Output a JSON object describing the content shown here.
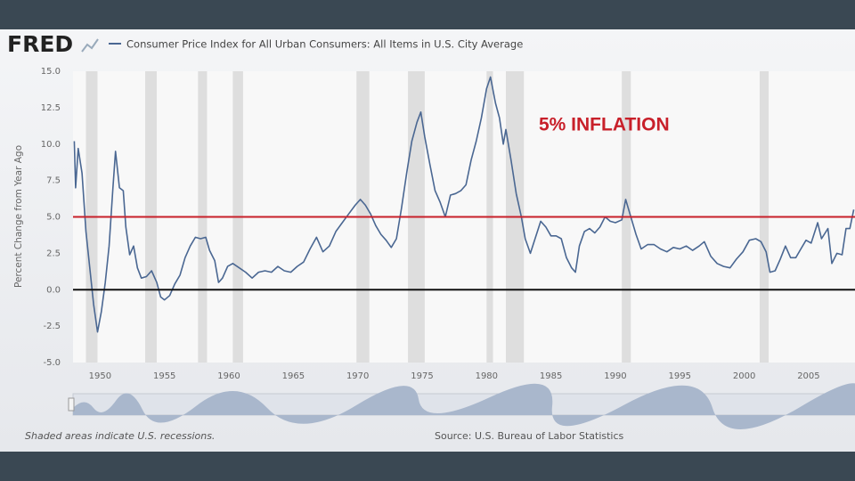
{
  "chart_data": {
    "type": "line",
    "logo": "FRED",
    "y_label": "Percent Change from Year Ago",
    "note": "Shaded areas indicate U.S. recessions.",
    "source": "Source: U.S. Bureau of Labor Statistics",
    "x": [
      1948.0,
      1948.1,
      1948.3,
      1948.6,
      1948.9,
      1949.2,
      1949.5,
      1949.8,
      1950.1,
      1950.4,
      1950.7,
      1951.0,
      1951.2,
      1951.5,
      1951.8,
      1952.0,
      1952.3,
      1952.6,
      1952.9,
      1953.2,
      1953.6,
      1954.0,
      1954.4,
      1954.7,
      1955.0,
      1955.4,
      1955.8,
      1956.2,
      1956.6,
      1957.0,
      1957.4,
      1957.8,
      1958.2,
      1958.5,
      1958.9,
      1959.2,
      1959.5,
      1959.9,
      1960.3,
      1960.8,
      1961.3,
      1961.8,
      1962.3,
      1962.8,
      1963.3,
      1963.8,
      1964.3,
      1964.8,
      1965.3,
      1965.8,
      1966.3,
      1966.8,
      1967.3,
      1967.8,
      1968.3,
      1968.8,
      1969.3,
      1969.8,
      1970.2,
      1970.6,
      1971.0,
      1971.4,
      1971.8,
      1972.2,
      1972.6,
      1973.0,
      1973.4,
      1973.8,
      1974.2,
      1974.6,
      1974.9,
      1975.2,
      1975.6,
      1976.0,
      1976.4,
      1976.8,
      1977.2,
      1977.6,
      1978.0,
      1978.4,
      1978.8,
      1979.2,
      1979.6,
      1980.0,
      1980.3,
      1980.7,
      1981.0,
      1981.3,
      1981.5,
      1981.9,
      1982.3,
      1982.7,
      1983.0,
      1983.4,
      1983.8,
      1984.2,
      1984.6,
      1985.0,
      1985.4,
      1985.8,
      1986.2,
      1986.6,
      1986.9,
      1987.2,
      1987.6,
      1988.0,
      1988.4,
      1988.8,
      1989.2,
      1989.6,
      1990.0,
      1990.5,
      1990.8,
      1991.2,
      1991.6,
      1992.0,
      1992.5,
      1993.0,
      1993.5,
      1994.0,
      1994.5,
      1995.0,
      1995.5,
      1996.0,
      1996.5,
      1996.9,
      1997.4,
      1997.9,
      1998.4,
      1998.9,
      1999.4,
      1999.9,
      2000.4,
      2000.9,
      2001.3,
      2001.7,
      2002.0,
      2002.4,
      2002.8,
      2003.2,
      2003.6,
      2004.0,
      2004.4,
      2004.8,
      2005.2,
      2005.7,
      2006.0,
      2006.5,
      2006.8,
      2007.2,
      2007.6,
      2007.9,
      2008.2,
      2008.5
    ],
    "series": [
      {
        "name": "Consumer Price Index for All Urban Consumers: All Items in U.S. City Average",
        "color": "#4a6792",
        "values": [
          10.2,
          7,
          9.7,
          8,
          4,
          1.5,
          -1,
          -2.9,
          -1.5,
          0.5,
          3,
          7,
          9.5,
          7,
          6.8,
          4.3,
          2.4,
          3,
          1.5,
          0.8,
          0.9,
          1.3,
          0.5,
          -0.5,
          -0.7,
          -0.4,
          0.4,
          1,
          2.2,
          3,
          3.6,
          3.5,
          3.6,
          2.7,
          2,
          0.5,
          0.8,
          1.6,
          1.8,
          1.5,
          1.2,
          0.8,
          1.2,
          1.3,
          1.2,
          1.6,
          1.3,
          1.2,
          1.6,
          1.9,
          2.8,
          3.6,
          2.6,
          3,
          4,
          4.6,
          5.2,
          5.8,
          6.2,
          5.8,
          5.2,
          4.4,
          3.8,
          3.4,
          2.9,
          3.5,
          5.6,
          8,
          10.2,
          11.5,
          12.2,
          10.5,
          8.6,
          6.8,
          6,
          5,
          6.5,
          6.6,
          6.8,
          7.2,
          8.9,
          10.2,
          11.8,
          13.8,
          14.6,
          12.8,
          11.8,
          10,
          11,
          8.9,
          6.6,
          5,
          3.5,
          2.5,
          3.6,
          4.7,
          4.3,
          3.7,
          3.7,
          3.5,
          2.2,
          1.5,
          1.2,
          3,
          4,
          4.2,
          3.9,
          4.3,
          5,
          4.7,
          4.6,
          4.8,
          6.2,
          5,
          3.8,
          2.8,
          3.1,
          3.1,
          2.8,
          2.6,
          2.9,
          2.8,
          3,
          2.7,
          3,
          3.3,
          2.3,
          1.8,
          1.6,
          1.5,
          2.1,
          2.6,
          3.4,
          3.5,
          3.3,
          2.6,
          1.2,
          1.3,
          2.1,
          3,
          2.2,
          2.2,
          2.8,
          3.4,
          3.2,
          4.6,
          3.5,
          4.2,
          1.8,
          2.5,
          2.4,
          4.2,
          4.2,
          5.5
        ]
      }
    ],
    "recessions": [
      [
        1948.9,
        1949.8
      ],
      [
        1953.5,
        1954.4
      ],
      [
        1957.6,
        1958.3
      ],
      [
        1960.3,
        1961.1
      ],
      [
        1969.9,
        1970.9
      ],
      [
        1973.9,
        1975.2
      ],
      [
        1980.0,
        1980.5
      ],
      [
        1981.5,
        1982.9
      ],
      [
        1990.5,
        1991.2
      ],
      [
        2001.2,
        2001.9
      ]
    ],
    "recession_color": "#dedede",
    "reference_lines": [
      {
        "value": 5,
        "color": "#c8202a",
        "label": "5% INFLATION"
      },
      {
        "value": 0,
        "color": "#111111"
      }
    ],
    "xlim": [
      1947.9,
      2008.6
    ],
    "ylim": [
      -5,
      15
    ],
    "xticks": [
      1950,
      1955,
      1960,
      1965,
      1970,
      1975,
      1980,
      1985,
      1990,
      1995,
      2000,
      2005
    ],
    "yticks": [
      {
        "value": 15,
        "label": "15.0"
      },
      12.5,
      {
        "value": 10,
        "label": "10.0"
      },
      7.5,
      {
        "value": 5,
        "label": "5.0"
      },
      2.5,
      {
        "value": 0,
        "label": "0.0"
      },
      -2.5,
      {
        "value": -5,
        "label": "-5.0"
      }
    ]
  }
}
